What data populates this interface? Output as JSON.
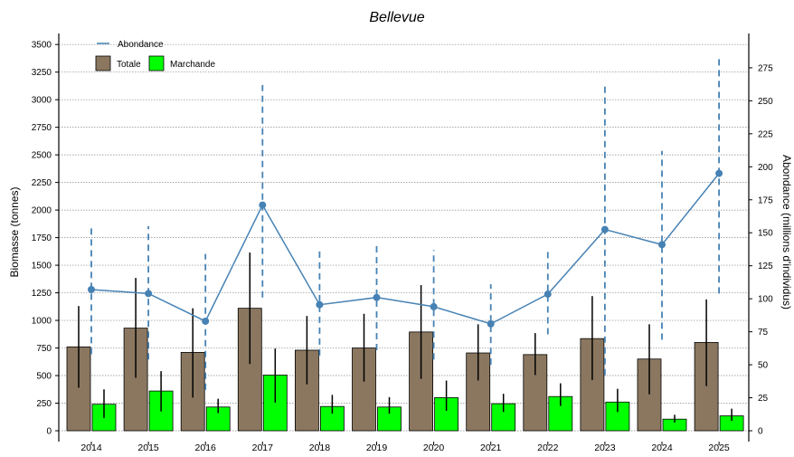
{
  "chart_data": {
    "type": "bar",
    "title": "Bellevue",
    "ylabel_left": "Biomasse (tonnes)",
    "ylabel_right": "Abondance (millions d'individus)",
    "categories": [
      "2014",
      "2015",
      "2016",
      "2017",
      "2018",
      "2019",
      "2020",
      "2021",
      "2022",
      "2023",
      "2024",
      "2025"
    ],
    "ylim_left": [
      0,
      3600
    ],
    "ylim_right": [
      0,
      301
    ],
    "yticks_left": [
      0,
      250,
      500,
      750,
      1000,
      1250,
      1500,
      1750,
      2000,
      2250,
      2500,
      2750,
      3000,
      3250,
      3500
    ],
    "yticks_right": [
      0,
      25,
      50,
      75,
      100,
      125,
      150,
      175,
      200,
      225,
      250,
      275
    ],
    "grid": true,
    "legend": {
      "position": "top-left",
      "line_label": "Abondance",
      "bar_labels": [
        "Totale",
        "Marchande"
      ]
    },
    "series": [
      {
        "name": "Totale",
        "kind": "bar",
        "axis": "left",
        "color": "#8b7760",
        "values": [
          760,
          930,
          710,
          1110,
          730,
          750,
          895,
          705,
          690,
          835,
          650,
          800
        ],
        "error_low": [
          390,
          480,
          300,
          605,
          420,
          445,
          470,
          455,
          505,
          460,
          330,
          405
        ],
        "error_high": [
          1130,
          1385,
          1110,
          1615,
          1040,
          1060,
          1320,
          965,
          885,
          1220,
          965,
          1190
        ]
      },
      {
        "name": "Marchande",
        "kind": "bar",
        "axis": "left",
        "color": "#00ff00",
        "values": [
          240,
          360,
          215,
          505,
          220,
          215,
          300,
          245,
          310,
          260,
          105,
          135
        ],
        "error_low": [
          115,
          175,
          160,
          255,
          155,
          155,
          180,
          170,
          225,
          170,
          75,
          90
        ],
        "error_high": [
          375,
          540,
          290,
          745,
          325,
          305,
          455,
          335,
          430,
          380,
          145,
          200
        ]
      },
      {
        "name": "Abondance",
        "kind": "line",
        "axis": "right",
        "color": "#4682b4",
        "values": [
          107,
          104,
          83,
          171,
          95.5,
          101,
          94,
          81,
          103.5,
          152.5,
          141,
          195
        ],
        "error_low": [
          58,
          54,
          31,
          101,
          57,
          61,
          54,
          50,
          73,
          42,
          69,
          104
        ],
        "error_high": [
          155,
          155,
          134,
          262,
          138,
          140,
          137,
          111,
          138,
          263,
          212,
          282
        ]
      }
    ]
  }
}
